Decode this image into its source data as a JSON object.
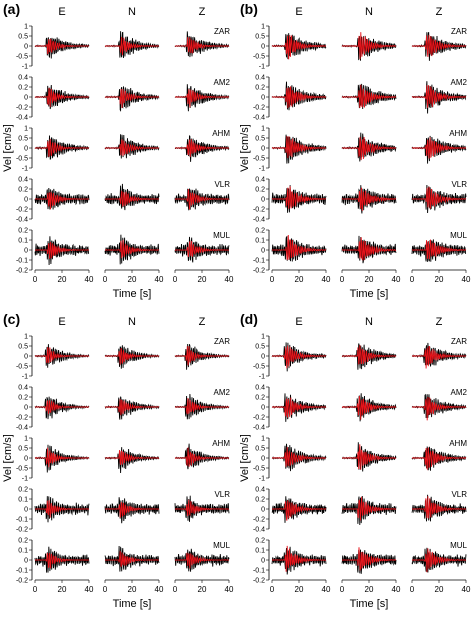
{
  "chart_data": {
    "type": "line",
    "components": [
      "E",
      "N",
      "Z"
    ],
    "stations": [
      "ZAR",
      "AM2",
      "AHM",
      "VLR",
      "MUL"
    ],
    "series": [
      {
        "name": "black",
        "color": "#000000"
      },
      {
        "name": "red",
        "color": "#e8141b"
      }
    ],
    "xlabel": "Time [s]",
    "ylabel": "Vel [cm/s]",
    "x_ticks": [
      "0",
      "20",
      "40"
    ],
    "xlim": [
      0,
      40
    ],
    "panels": [
      {
        "id": "a",
        "label": "(a)",
        "rows": [
          {
            "station": "ZAR",
            "ylim": [
              -1,
              1
            ],
            "ticks": [
              "1",
              "0.5",
              "0",
              "-0.5",
              "-1"
            ]
          },
          {
            "station": "AM2",
            "ylim": [
              -0.4,
              0.4
            ],
            "ticks": [
              "0.4",
              "0.2",
              "0",
              "-0.2",
              "-0.4"
            ]
          },
          {
            "station": "AHM",
            "ylim": [
              -1,
              1
            ],
            "ticks": [
              "1",
              "0.5",
              "0",
              "-0.5",
              "-1"
            ]
          },
          {
            "station": "VLR",
            "ylim": [
              -0.4,
              0.4
            ],
            "ticks": [
              "0.4",
              "0.2",
              "0",
              "-0.2",
              "-0.4"
            ]
          },
          {
            "station": "MUL",
            "ylim": [
              -0.2,
              0.2
            ],
            "ticks": [
              "0.2",
              "0.1",
              "0",
              "-0.1",
              "-0.2"
            ]
          }
        ]
      },
      {
        "id": "b",
        "label": "(b)",
        "rows": [
          {
            "station": "ZAR",
            "ylim": [
              -1,
              1
            ],
            "ticks": [
              "1",
              "0.5",
              "0",
              "-0.5",
              "-1"
            ]
          },
          {
            "station": "AM2",
            "ylim": [
              -0.4,
              0.4
            ],
            "ticks": [
              "0.4",
              "0.2",
              "0",
              "-0.2",
              "-0.4"
            ]
          },
          {
            "station": "AHM",
            "ylim": [
              -1,
              1
            ],
            "ticks": [
              "1",
              "0.5",
              "0",
              "-0.5",
              "-1"
            ]
          },
          {
            "station": "VLR",
            "ylim": [
              -0.4,
              0.4
            ],
            "ticks": [
              "0.4",
              "0.2",
              "0",
              "-0.2",
              "-0.4"
            ]
          },
          {
            "station": "MUL",
            "ylim": [
              -0.2,
              0.2
            ],
            "ticks": [
              "0.2",
              "0.1",
              "0",
              "-0.1",
              "-0.2"
            ]
          }
        ]
      },
      {
        "id": "c",
        "label": "(c)",
        "rows": [
          {
            "station": "ZAR",
            "ylim": [
              -1,
              1
            ],
            "ticks": [
              "1",
              "0.5",
              "0",
              "-0.5",
              "-1"
            ]
          },
          {
            "station": "AM2",
            "ylim": [
              -0.4,
              0.4
            ],
            "ticks": [
              "0.4",
              "0.2",
              "0",
              "-0.2",
              "-0.4"
            ]
          },
          {
            "station": "AHM",
            "ylim": [
              -1,
              1
            ],
            "ticks": [
              "1",
              "0.5",
              "0",
              "-0.5",
              "-1"
            ]
          },
          {
            "station": "VLR",
            "ylim": [
              -0.2,
              0.2
            ],
            "ticks": [
              "0.2",
              "0.1",
              "0",
              "-0.1",
              "-0.2"
            ]
          },
          {
            "station": "MUL",
            "ylim": [
              -0.2,
              0.2
            ],
            "ticks": [
              "0.2",
              "0.1",
              "0",
              "-0.1",
              "-0.2"
            ]
          }
        ]
      },
      {
        "id": "d",
        "label": "(d)",
        "rows": [
          {
            "station": "ZAR",
            "ylim": [
              -1,
              1
            ],
            "ticks": [
              "1",
              "0.5",
              "0",
              "-0.5",
              "-1"
            ]
          },
          {
            "station": "AM2",
            "ylim": [
              -0.4,
              0.4
            ],
            "ticks": [
              "0.4",
              "0.2",
              "0",
              "-0.2",
              "-0.4"
            ]
          },
          {
            "station": "AHM",
            "ylim": [
              -1,
              1
            ],
            "ticks": [
              "1",
              "0.5",
              "0",
              "-0.5",
              "-1"
            ]
          },
          {
            "station": "VLR",
            "ylim": [
              -0.4,
              0.4
            ],
            "ticks": [
              "0.4",
              "0.2",
              "0",
              "-0.2",
              "-0.4"
            ]
          },
          {
            "station": "MUL",
            "ylim": [
              -0.2,
              0.2
            ],
            "ticks": [
              "0.2",
              "0.1",
              "0",
              "-0.1",
              "-0.2"
            ]
          }
        ]
      }
    ]
  }
}
